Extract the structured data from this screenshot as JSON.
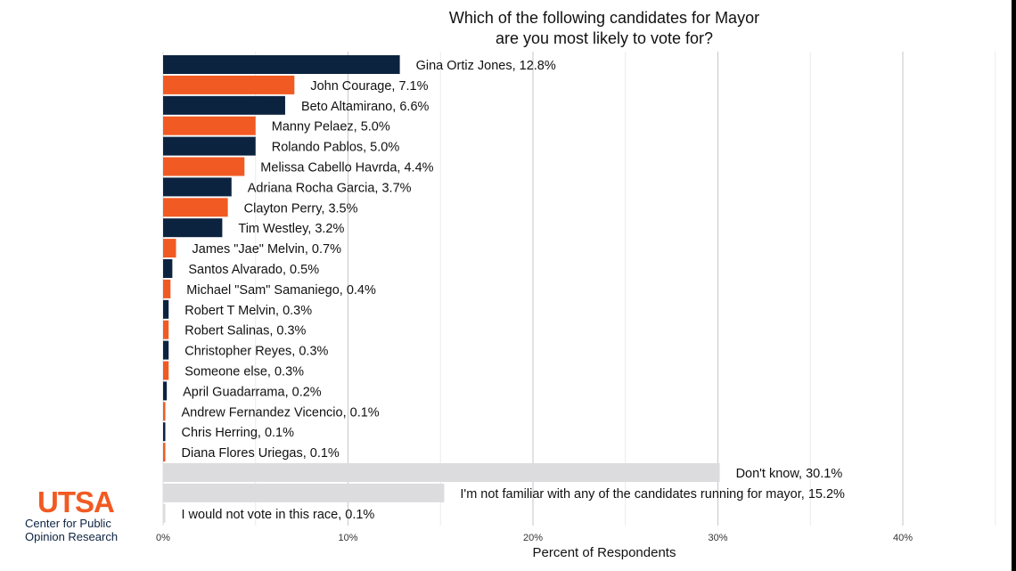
{
  "brand": {
    "logo_text": "UTSA",
    "org_line1": "Center for Public",
    "org_line2": "Opinion Research",
    "navy": "#0c2340",
    "orange": "#f15a22",
    "gray": "#dcdcdf"
  },
  "chart_data": {
    "type": "bar",
    "orientation": "horizontal",
    "title_lines": [
      "Which of the following candidates for Mayor",
      "are you most likely to vote for?"
    ],
    "xlabel": "Percent of Respondents",
    "ylabel": "",
    "xlim": [
      0,
      45
    ],
    "xticks": [
      "0%",
      "10%",
      "20%",
      "30%",
      "40%"
    ],
    "xtick_values": [
      0,
      10,
      20,
      30,
      40
    ],
    "grid": true,
    "bars": [
      {
        "label": "Gina Ortiz Jones, 12.8%",
        "value": 12.8,
        "color": "#0c2340"
      },
      {
        "label": "John Courage, 7.1%",
        "value": 7.1,
        "color": "#f15a22"
      },
      {
        "label": "Beto Altamirano, 6.6%",
        "value": 6.6,
        "color": "#0c2340"
      },
      {
        "label": "Manny Pelaez, 5.0%",
        "value": 5.0,
        "color": "#f15a22"
      },
      {
        "label": "Rolando Pablos, 5.0%",
        "value": 5.0,
        "color": "#0c2340"
      },
      {
        "label": "Melissa Cabello Havrda, 4.4%",
        "value": 4.4,
        "color": "#f15a22"
      },
      {
        "label": "Adriana Rocha Garcia, 3.7%",
        "value": 3.7,
        "color": "#0c2340"
      },
      {
        "label": "Clayton Perry, 3.5%",
        "value": 3.5,
        "color": "#f15a22"
      },
      {
        "label": "Tim Westley, 3.2%",
        "value": 3.2,
        "color": "#0c2340"
      },
      {
        "label": "James \"Jae\" Melvin, 0.7%",
        "value": 0.7,
        "color": "#f15a22"
      },
      {
        "label": "Santos Alvarado, 0.5%",
        "value": 0.5,
        "color": "#0c2340"
      },
      {
        "label": "Michael \"Sam\" Samaniego, 0.4%",
        "value": 0.4,
        "color": "#f15a22"
      },
      {
        "label": "Robert T Melvin, 0.3%",
        "value": 0.3,
        "color": "#0c2340"
      },
      {
        "label": "Robert Salinas, 0.3%",
        "value": 0.3,
        "color": "#f15a22"
      },
      {
        "label": "Christopher Reyes, 0.3%",
        "value": 0.3,
        "color": "#0c2340"
      },
      {
        "label": "Someone else, 0.3%",
        "value": 0.3,
        "color": "#f15a22"
      },
      {
        "label": "April Guadarrama, 0.2%",
        "value": 0.2,
        "color": "#0c2340"
      },
      {
        "label": "Andrew Fernandez Vicencio, 0.1%",
        "value": 0.1,
        "color": "#f15a22"
      },
      {
        "label": "Chris Herring, 0.1%",
        "value": 0.1,
        "color": "#0c2340"
      },
      {
        "label": "Diana Flores Uriegas, 0.1%",
        "value": 0.1,
        "color": "#f15a22"
      },
      {
        "label": "Don't know, 30.1%",
        "value": 30.1,
        "color": "#dcdcdf"
      },
      {
        "label": "I'm not familiar with any of the candidates running for mayor, 15.2%",
        "value": 15.2,
        "color": "#dcdcdf"
      },
      {
        "label": "I would not vote in this race, 0.1%",
        "value": 0.1,
        "color": "#dcdcdf"
      }
    ]
  }
}
